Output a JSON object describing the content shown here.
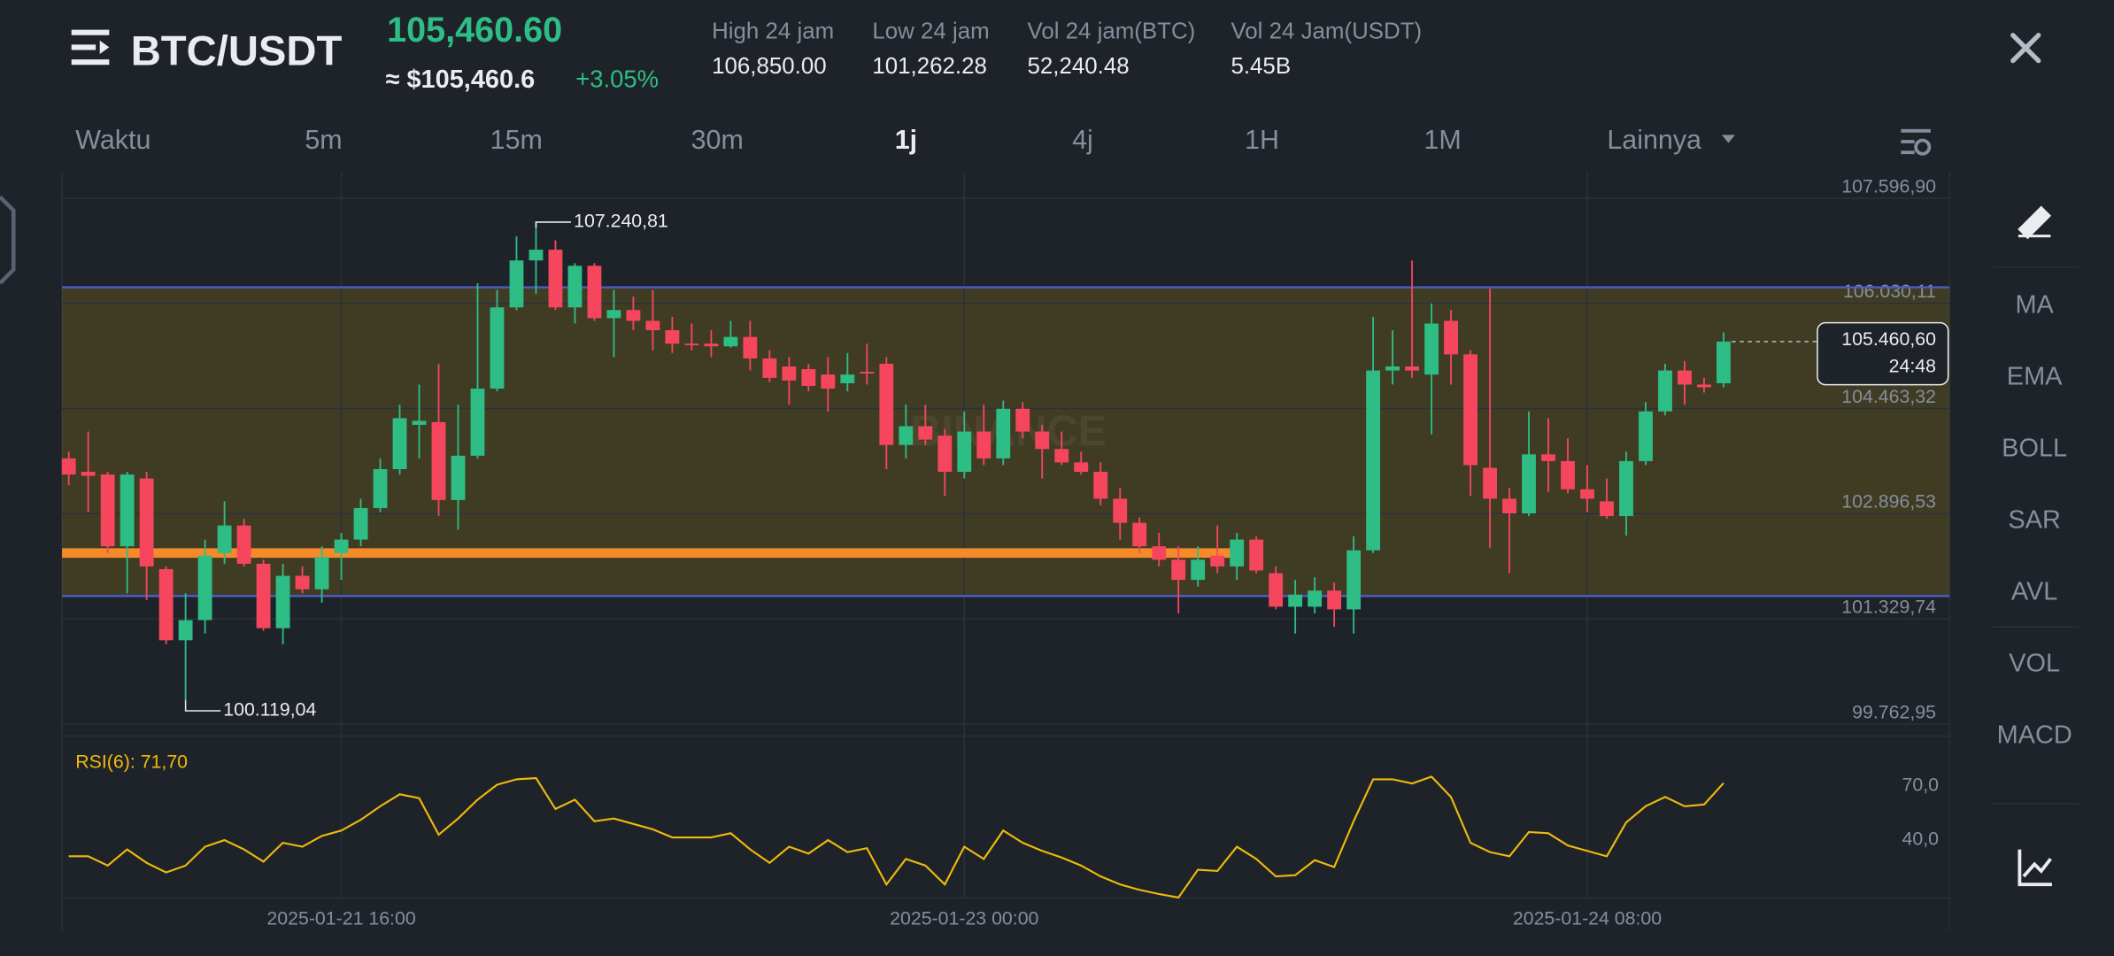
{
  "header": {
    "pair": "BTC/USDT",
    "price": "105,460.60",
    "price_usd": "≈ $105,460.6",
    "change": "+3.05%",
    "stats": [
      {
        "label": "High 24 jam",
        "value": "106,850.00"
      },
      {
        "label": "Low 24 jam",
        "value": "101,262.28"
      },
      {
        "label": "Vol 24 jam(BTC)",
        "value": "52,240.48"
      },
      {
        "label": "Vol 24 Jam(USDT)",
        "value": "5.45B"
      }
    ]
  },
  "timeframes": {
    "label": "Waktu",
    "items": [
      "5m",
      "15m",
      "30m",
      "1j",
      "4j",
      "1H",
      "1M"
    ],
    "active": 3,
    "more": "Lainnya"
  },
  "indicators": [
    "MA",
    "EMA",
    "BOLL",
    "SAR",
    "AVL",
    "VOL",
    "MACD"
  ],
  "chart_data": [
    {
      "type": "candlestick",
      "watermark": "BINANCE",
      "categories": [
        null,
        null,
        null,
        null,
        null,
        null,
        null,
        null,
        null,
        null,
        null,
        null,
        null,
        null,
        "2025-01-21 16:00",
        null,
        null,
        null,
        null,
        null,
        null,
        null,
        null,
        null,
        null,
        null,
        null,
        null,
        null,
        null,
        null,
        null,
        null,
        null,
        null,
        null,
        null,
        null,
        null,
        null,
        null,
        null,
        null,
        null,
        null,
        null,
        "2025-01-23 00:00",
        null,
        null,
        null,
        null,
        null,
        null,
        null,
        null,
        null,
        null,
        null,
        null,
        null,
        null,
        null,
        null,
        null,
        null,
        null,
        null,
        null,
        null,
        null,
        null,
        null,
        null,
        null,
        null,
        null,
        null,
        null,
        "2025-01-24 08:00",
        null,
        null,
        null,
        null,
        null,
        null,
        null
      ],
      "open": [
        103720,
        103520,
        103480,
        102410,
        103420,
        102070,
        101010,
        101310,
        102310,
        102720,
        102150,
        101190,
        101970,
        101770,
        102310,
        102510,
        102980,
        103560,
        104220,
        104260,
        103100,
        103760,
        104760,
        105970,
        106670,
        106830,
        105970,
        106590,
        105810,
        105930,
        105770,
        105630,
        105430,
        105430,
        105390,
        105530,
        105210,
        105090,
        105050,
        104970,
        104840,
        105010,
        105130,
        103920,
        104200,
        104060,
        103520,
        104120,
        103720,
        104460,
        104120,
        103860,
        103660,
        103520,
        103120,
        102760,
        102410,
        102210,
        101910,
        102270,
        102110,
        102510,
        102010,
        101510,
        101510,
        101750,
        101470,
        102350,
        105030,
        105090,
        104970,
        105770,
        105270,
        103580,
        103120,
        102900,
        103780,
        103680,
        103260,
        103080,
        102860,
        103680,
        104420,
        105030,
        104820,
        104840
      ],
      "high": [
        103820,
        104120,
        103520,
        103520,
        103520,
        102110,
        101710,
        102510,
        103080,
        102820,
        102210,
        102150,
        102110,
        102410,
        102610,
        103120,
        103720,
        104520,
        104820,
        105130,
        104520,
        106330,
        106230,
        107030,
        107240.81,
        106970,
        106630,
        106630,
        106230,
        106130,
        106230,
        105830,
        105730,
        105630,
        105770,
        105770,
        105330,
        105230,
        105130,
        105230,
        105290,
        105430,
        105230,
        104520,
        104520,
        104160,
        104420,
        104520,
        104580,
        104560,
        104220,
        104120,
        103820,
        103660,
        103280,
        102840,
        102610,
        102410,
        102410,
        102720,
        102610,
        102560,
        102110,
        101910,
        101950,
        101870,
        102560,
        105830,
        105630,
        106670,
        106030,
        105930,
        105330,
        106250,
        103280,
        104420,
        104320,
        104020,
        103620,
        103420,
        103820,
        104560,
        105130,
        105170,
        104920,
        105600
      ],
      "low": [
        103320,
        102920,
        102310,
        101710,
        101610,
        100950,
        100119.04,
        101110,
        102150,
        102110,
        101150,
        100950,
        101710,
        101570,
        101910,
        102410,
        102920,
        103480,
        103720,
        102860,
        102660,
        103720,
        104720,
        105930,
        106170,
        105930,
        105730,
        105770,
        105230,
        105630,
        105330,
        105290,
        105330,
        105230,
        105370,
        105030,
        104860,
        104520,
        104720,
        104420,
        104720,
        104820,
        103560,
        103720,
        103920,
        103160,
        103420,
        103620,
        103620,
        104020,
        103420,
        103620,
        103480,
        103020,
        102510,
        102310,
        102110,
        101410,
        101810,
        102010,
        101910,
        102010,
        101470,
        101110,
        101410,
        101210,
        101110,
        102310,
        104820,
        104920,
        104080,
        104820,
        103160,
        102390,
        102010,
        102860,
        103220,
        103200,
        102920,
        102820,
        102570,
        103620,
        104360,
        104520,
        104700,
        104780
      ],
      "close": [
        103480,
        103460,
        102410,
        103480,
        102110,
        101010,
        101310,
        102270,
        102720,
        102150,
        101190,
        101970,
        101770,
        102250,
        102510,
        102980,
        103560,
        104320,
        104280,
        103100,
        103760,
        104760,
        105970,
        106670,
        106830,
        105970,
        106590,
        105810,
        105930,
        105770,
        105630,
        105430,
        105410,
        105390,
        105530,
        105210,
        104920,
        104880,
        104800,
        104760,
        104970,
        104990,
        103920,
        104200,
        104000,
        103520,
        104120,
        103720,
        104460,
        104120,
        103860,
        103660,
        103520,
        103120,
        102760,
        102410,
        102210,
        101910,
        102210,
        102110,
        102510,
        102050,
        101510,
        101690,
        101750,
        101470,
        102350,
        105030,
        105090,
        105030,
        105730,
        105270,
        103620,
        103120,
        102900,
        103780,
        103680,
        103260,
        103120,
        102860,
        103680,
        104420,
        105030,
        104820,
        104780,
        105460.6
      ],
      "up_color": "#2ebd85",
      "down_color": "#f6465d",
      "ylim": [
        99581,
        107978
      ],
      "yticks": [
        {
          "value": 107596.9,
          "label": "107.596,90"
        },
        {
          "value": 106030.11,
          "label": "106.030,11"
        },
        {
          "value": 104463.32,
          "label": "104.463,32"
        },
        {
          "value": 102896.53,
          "label": "102.896,53"
        },
        {
          "value": 101329.74,
          "label": "101.329,74"
        },
        {
          "value": 99762.95,
          "label": "99.762,95"
        }
      ],
      "grid": true,
      "band_color": "#f0b90b",
      "hlines": [
        {
          "value": 106270,
          "color": "#4a5cc4"
        },
        {
          "value": 101670,
          "color": "#4a5cc4"
        },
        {
          "value": 102310,
          "color": "#f58a2a",
          "thick": true
        }
      ],
      "high_annotation": {
        "value": 107240.81,
        "label": "107.240,81"
      },
      "low_annotation": {
        "value": 100119.04,
        "label": "100.119,04"
      },
      "last_price": {
        "value": 105460.6,
        "label": "105.460,60"
      },
      "countdown": "24:48"
    },
    {
      "type": "line",
      "title": "RSI(6): 71,70",
      "color": "#f0b90b",
      "values": [
        31,
        31,
        25.8,
        34.8,
        27.3,
        22,
        25.8,
        36.3,
        40,
        34.8,
        28,
        38.5,
        36.3,
        42.3,
        45.3,
        51.3,
        58.8,
        65.5,
        63.3,
        43,
        52,
        62.5,
        70.8,
        73.8,
        74.5,
        57.3,
        62.5,
        50.5,
        52,
        49,
        46,
        41.5,
        41.5,
        41.5,
        43.8,
        34.8,
        27.3,
        36.3,
        32.5,
        40,
        33.3,
        35.5,
        15.3,
        29.5,
        25.8,
        15.3,
        36.3,
        29.5,
        45.3,
        38.5,
        34,
        30.3,
        25.8,
        19.8,
        15.3,
        12.3,
        10,
        8,
        23.5,
        22.8,
        36.3,
        29.5,
        19.8,
        20.5,
        28.8,
        25,
        50.5,
        73.8,
        73.8,
        71.5,
        75.3,
        64,
        38.5,
        33.3,
        31,
        44.5,
        43.8,
        37,
        34,
        31,
        49.8,
        58.8,
        64,
        58.8,
        59.8,
        71.7
      ],
      "ylim": [
        7.8,
        97.8
      ],
      "yticks": [
        {
          "value": 70,
          "label": "70,0"
        },
        {
          "value": 40,
          "label": "40,0"
        }
      ]
    }
  ]
}
